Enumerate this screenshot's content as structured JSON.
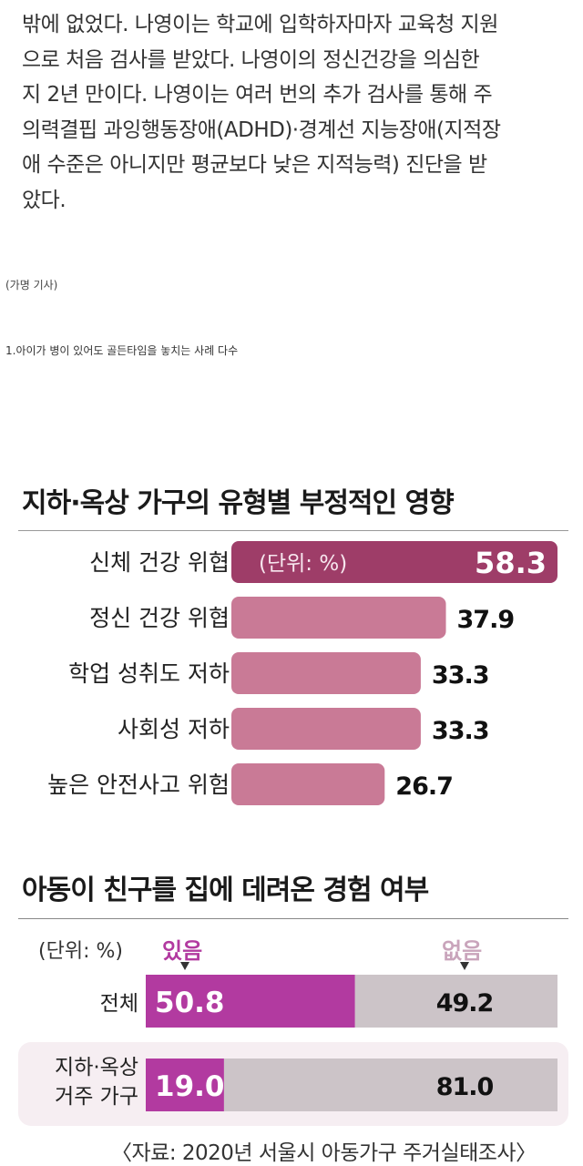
{
  "article": {
    "lines": [
      "밖에 없었다. 나영이는 학교에 입학하자마자 교육청 지원",
      "으로 처음 검사를 받았다. 나영이의 정신건강을 의심한",
      "지 2년 만이다. 나영이는 여러 번의 추가 검사를 통해 주",
      "의력결핍 과잉행동장애(ADHD)·경계선 지능장애(지적장",
      "애 수준은 아니지만 평균보다 낮은 지적능력) 진단을 받",
      "았다."
    ],
    "caption": "(가명 기사)",
    "heading": "1.아이가 병이 있어도 골든타임을 놓치는 사례 다수"
  },
  "chart_data": [
    {
      "type": "bar",
      "orientation": "horizontal",
      "title": "지하·옥상 가구의 유형별 부정적인 영향",
      "unit_label": "(단위: %)",
      "categories": [
        "신체 건강 위협",
        "정신 건강 위협",
        "학업 성취도 저하",
        "사회성 저하",
        "높은 안전사고 위험"
      ],
      "values": [
        58.3,
        37.9,
        33.3,
        33.3,
        26.7
      ],
      "value_labels": [
        "58.3",
        "37.9",
        "33.3",
        "33.3",
        "26.7"
      ],
      "colors": {
        "highlight": "#9e3d68",
        "bar": "#c97a96"
      }
    },
    {
      "type": "bar",
      "orientation": "horizontal",
      "stacked": true,
      "title": "아동이 친구를 집에 데려온 경험 여부",
      "unit_label": "(단위: %)",
      "categories": [
        "전체",
        "지하·옥상 거주 가구"
      ],
      "category_lines": [
        [
          "전체"
        ],
        [
          "지하·옥상",
          "거주 가구"
        ]
      ],
      "series": [
        {
          "name": "있음",
          "values": [
            50.8,
            19.0
          ],
          "labels": [
            "50.8",
            "19.0"
          ],
          "color": "#b23aa0"
        },
        {
          "name": "없음",
          "values": [
            49.2,
            81.0
          ],
          "labels": [
            "49.2",
            "81.0"
          ],
          "color": "#ccc4c8"
        }
      ]
    }
  ],
  "source": "〈자료: 2020년 서울시 아동가구 주거실태조사〉"
}
